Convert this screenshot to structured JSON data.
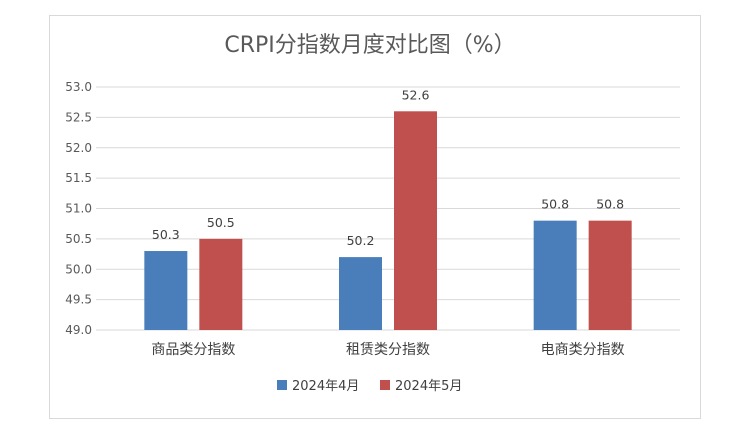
{
  "chart_data": {
    "type": "bar",
    "title": "CRPI分指数月度对比图（%）",
    "categories": [
      "商品类分指数",
      "租赁类分指数",
      "电商类分指数"
    ],
    "series": [
      {
        "name": "2024年4月",
        "values": [
          50.3,
          50.2,
          50.8
        ],
        "color": "#4a7ebb"
      },
      {
        "name": "2024年5月",
        "values": [
          50.5,
          52.6,
          50.8
        ],
        "color": "#c0504d"
      }
    ],
    "ylim": [
      49.0,
      53.0
    ],
    "yticks": [
      "49.0",
      "49.5",
      "50.0",
      "50.5",
      "51.0",
      "51.5",
      "52.0",
      "52.5",
      "53.0"
    ],
    "data_labels": [
      [
        "50.3",
        "50.2",
        "50.8"
      ],
      [
        "50.5",
        "52.6",
        "50.8"
      ]
    ],
    "grid": true,
    "legend": "bottom",
    "gridline_color": "#d9d9d9"
  }
}
